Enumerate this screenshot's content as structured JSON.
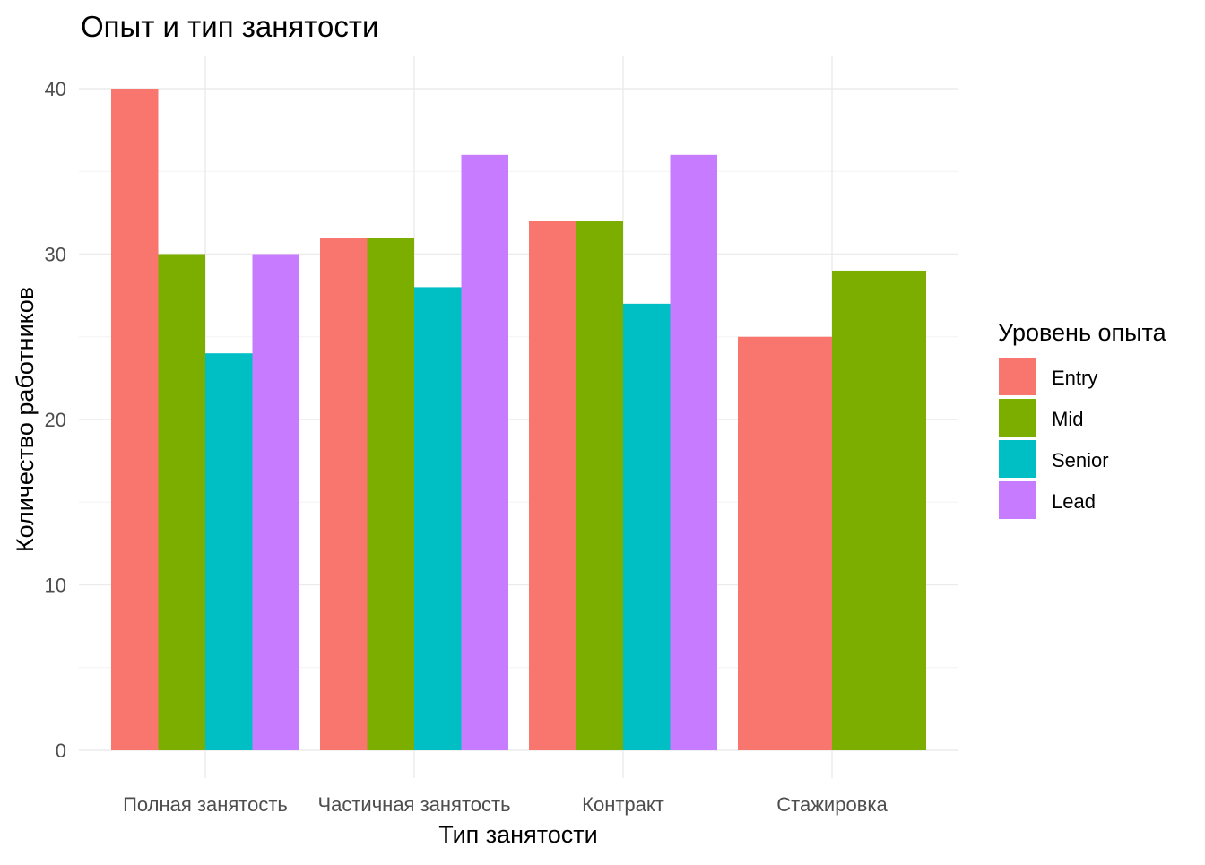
{
  "chart_data": {
    "type": "bar",
    "title": "Опыт и тип занятости",
    "xlabel": "Тип занятости",
    "ylabel": "Количество работников",
    "categories": [
      "Полная занятость",
      "Частичная занятость",
      "Контракт",
      "Стажировка"
    ],
    "ylim": [
      0,
      42
    ],
    "yticks": [
      0,
      10,
      20,
      30,
      40
    ],
    "grid": true,
    "legend": {
      "title": "Уровень опыта",
      "position": "right"
    },
    "series": [
      {
        "name": "Entry",
        "color": "#F8766D",
        "values": [
          40,
          31,
          32,
          25
        ]
      },
      {
        "name": "Mid",
        "color": "#7CAE00",
        "values": [
          30,
          31,
          32,
          29
        ]
      },
      {
        "name": "Senior",
        "color": "#00BFC4",
        "values": [
          24,
          28,
          27,
          null
        ]
      },
      {
        "name": "Lead",
        "color": "#C77CFF",
        "values": [
          30,
          36,
          36,
          null
        ]
      }
    ]
  }
}
